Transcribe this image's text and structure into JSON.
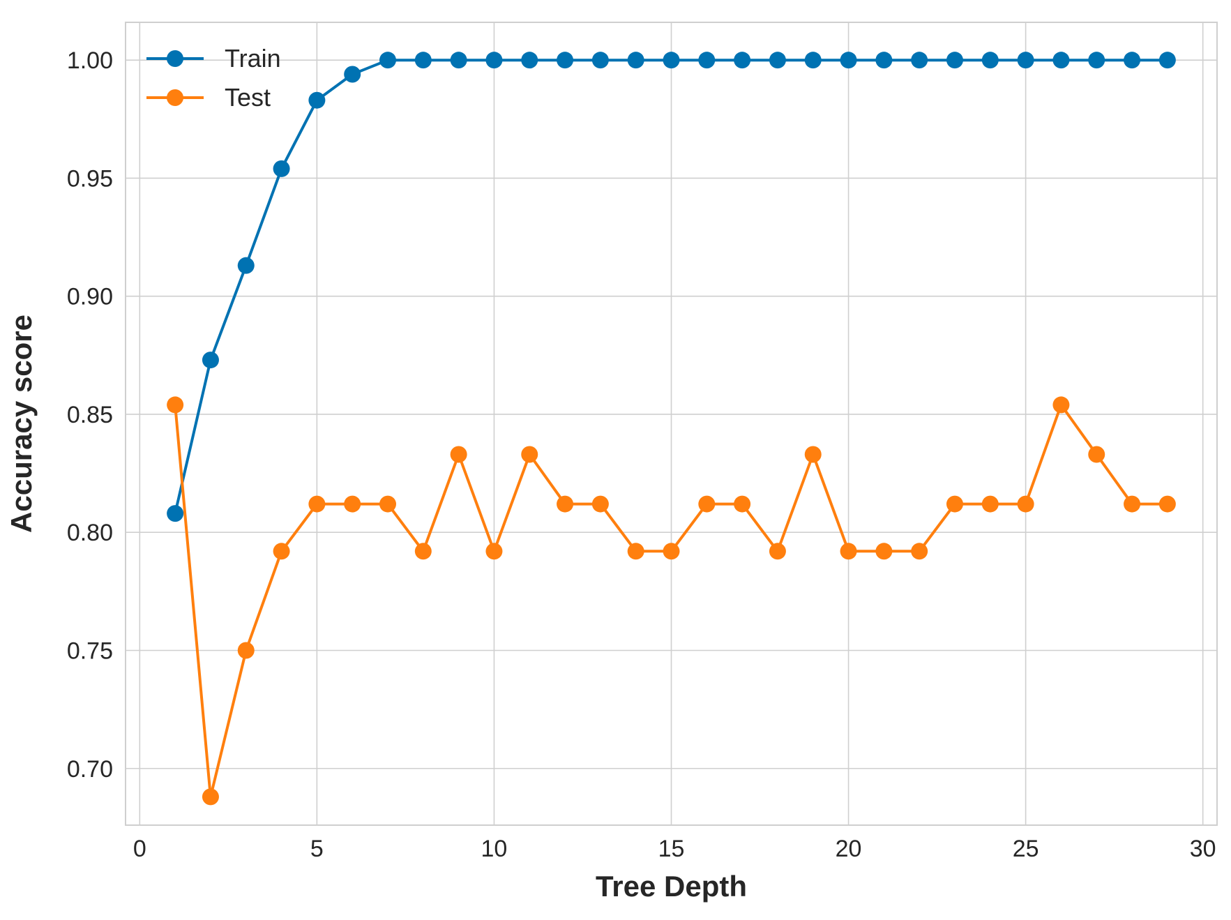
{
  "chart_data": {
    "type": "line",
    "title": "",
    "xlabel": "Tree Depth",
    "ylabel": "Accuracy score",
    "xlim": [
      -0.4,
      30.4
    ],
    "ylim": [
      0.676,
      1.016
    ],
    "xticks": [
      0,
      5,
      10,
      15,
      20,
      25,
      30
    ],
    "xtick_labels": [
      "0",
      "5",
      "10",
      "15",
      "20",
      "25",
      "30"
    ],
    "yticks": [
      0.7,
      0.75,
      0.8,
      0.85,
      0.9,
      0.95,
      1.0
    ],
    "ytick_labels": [
      "0.70",
      "0.75",
      "0.80",
      "0.85",
      "0.90",
      "0.95",
      "1.00"
    ],
    "grid": true,
    "legend_position": "top-left",
    "x": [
      1,
      2,
      3,
      4,
      5,
      6,
      7,
      8,
      9,
      10,
      11,
      12,
      13,
      14,
      15,
      16,
      17,
      18,
      19,
      20,
      21,
      22,
      23,
      24,
      25,
      26,
      27,
      28,
      29
    ],
    "series": [
      {
        "name": "Train",
        "color": "#0072b2",
        "marker": "circle",
        "values": [
          0.808,
          0.873,
          0.913,
          0.954,
          0.983,
          0.994,
          1.0,
          1.0,
          1.0,
          1.0,
          1.0,
          1.0,
          1.0,
          1.0,
          1.0,
          1.0,
          1.0,
          1.0,
          1.0,
          1.0,
          1.0,
          1.0,
          1.0,
          1.0,
          1.0,
          1.0,
          1.0,
          1.0,
          1.0
        ]
      },
      {
        "name": "Test",
        "color": "#ff7f0e",
        "marker": "circle",
        "values": [
          0.854,
          0.688,
          0.75,
          0.792,
          0.812,
          0.812,
          0.812,
          0.792,
          0.833,
          0.792,
          0.833,
          0.812,
          0.812,
          0.792,
          0.792,
          0.812,
          0.812,
          0.792,
          0.833,
          0.792,
          0.792,
          0.792,
          0.812,
          0.812,
          0.812,
          0.854,
          0.833,
          0.812,
          0.812
        ]
      }
    ]
  }
}
